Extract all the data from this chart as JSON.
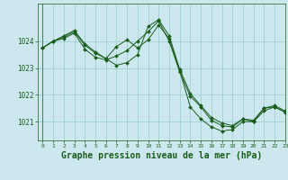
{
  "background_color": "#cce8ee",
  "plot_bg_color": "#cce8ee",
  "line_color": "#1a5c1a",
  "grid_color": "#99cccc",
  "xlabel": "Graphe pression niveau de la mer (hPa)",
  "xlabel_fontsize": 7,
  "xlim": [
    -0.5,
    23
  ],
  "ylim": [
    1020.3,
    1025.4
  ],
  "yticks": [
    1021,
    1022,
    1023,
    1024
  ],
  "xticks": [
    0,
    1,
    2,
    3,
    4,
    5,
    6,
    7,
    8,
    9,
    10,
    11,
    12,
    13,
    14,
    15,
    16,
    17,
    18,
    19,
    20,
    21,
    22,
    23
  ],
  "series": [
    {
      "x": [
        0,
        1,
        2,
        3,
        4,
        5,
        6,
        7,
        8,
        9,
        10,
        11,
        12,
        13,
        14,
        15,
        16,
        17,
        18,
        19,
        20,
        21,
        22,
        23
      ],
      "y": [
        1023.75,
        1024.0,
        1024.15,
        1024.35,
        1023.85,
        1023.55,
        1023.35,
        1023.8,
        1024.05,
        1023.75,
        1024.05,
        1024.6,
        1024.1,
        1022.9,
        1021.55,
        1021.1,
        1020.8,
        1020.65,
        1020.7,
        1021.0,
        1021.0,
        1021.4,
        1021.55,
        1021.35
      ]
    },
    {
      "x": [
        0,
        1,
        2,
        3,
        4,
        5,
        6,
        7,
        8,
        9,
        10,
        11,
        12,
        13,
        14,
        15,
        16,
        17,
        18,
        19,
        20,
        21,
        22,
        23
      ],
      "y": [
        1023.75,
        1024.0,
        1024.1,
        1024.3,
        1023.7,
        1023.4,
        1023.3,
        1023.45,
        1023.65,
        1024.0,
        1024.35,
        1024.75,
        1024.0,
        1022.85,
        1021.95,
        1021.55,
        1021.05,
        1020.85,
        1020.8,
        1021.1,
        1021.0,
        1021.5,
        1021.55,
        1021.35
      ]
    },
    {
      "x": [
        0,
        1,
        2,
        3,
        4,
        5,
        6,
        7,
        8,
        9,
        10,
        11,
        12,
        13,
        14,
        15,
        16,
        17,
        18,
        19,
        20,
        21,
        22,
        23
      ],
      "y": [
        1023.75,
        1024.0,
        1024.2,
        1024.4,
        1023.9,
        1023.6,
        1023.35,
        1023.1,
        1023.2,
        1023.5,
        1024.55,
        1024.8,
        1024.2,
        1022.95,
        1022.05,
        1021.6,
        1021.15,
        1020.95,
        1020.85,
        1021.1,
        1021.05,
        1021.5,
        1021.6,
        1021.4
      ]
    }
  ]
}
